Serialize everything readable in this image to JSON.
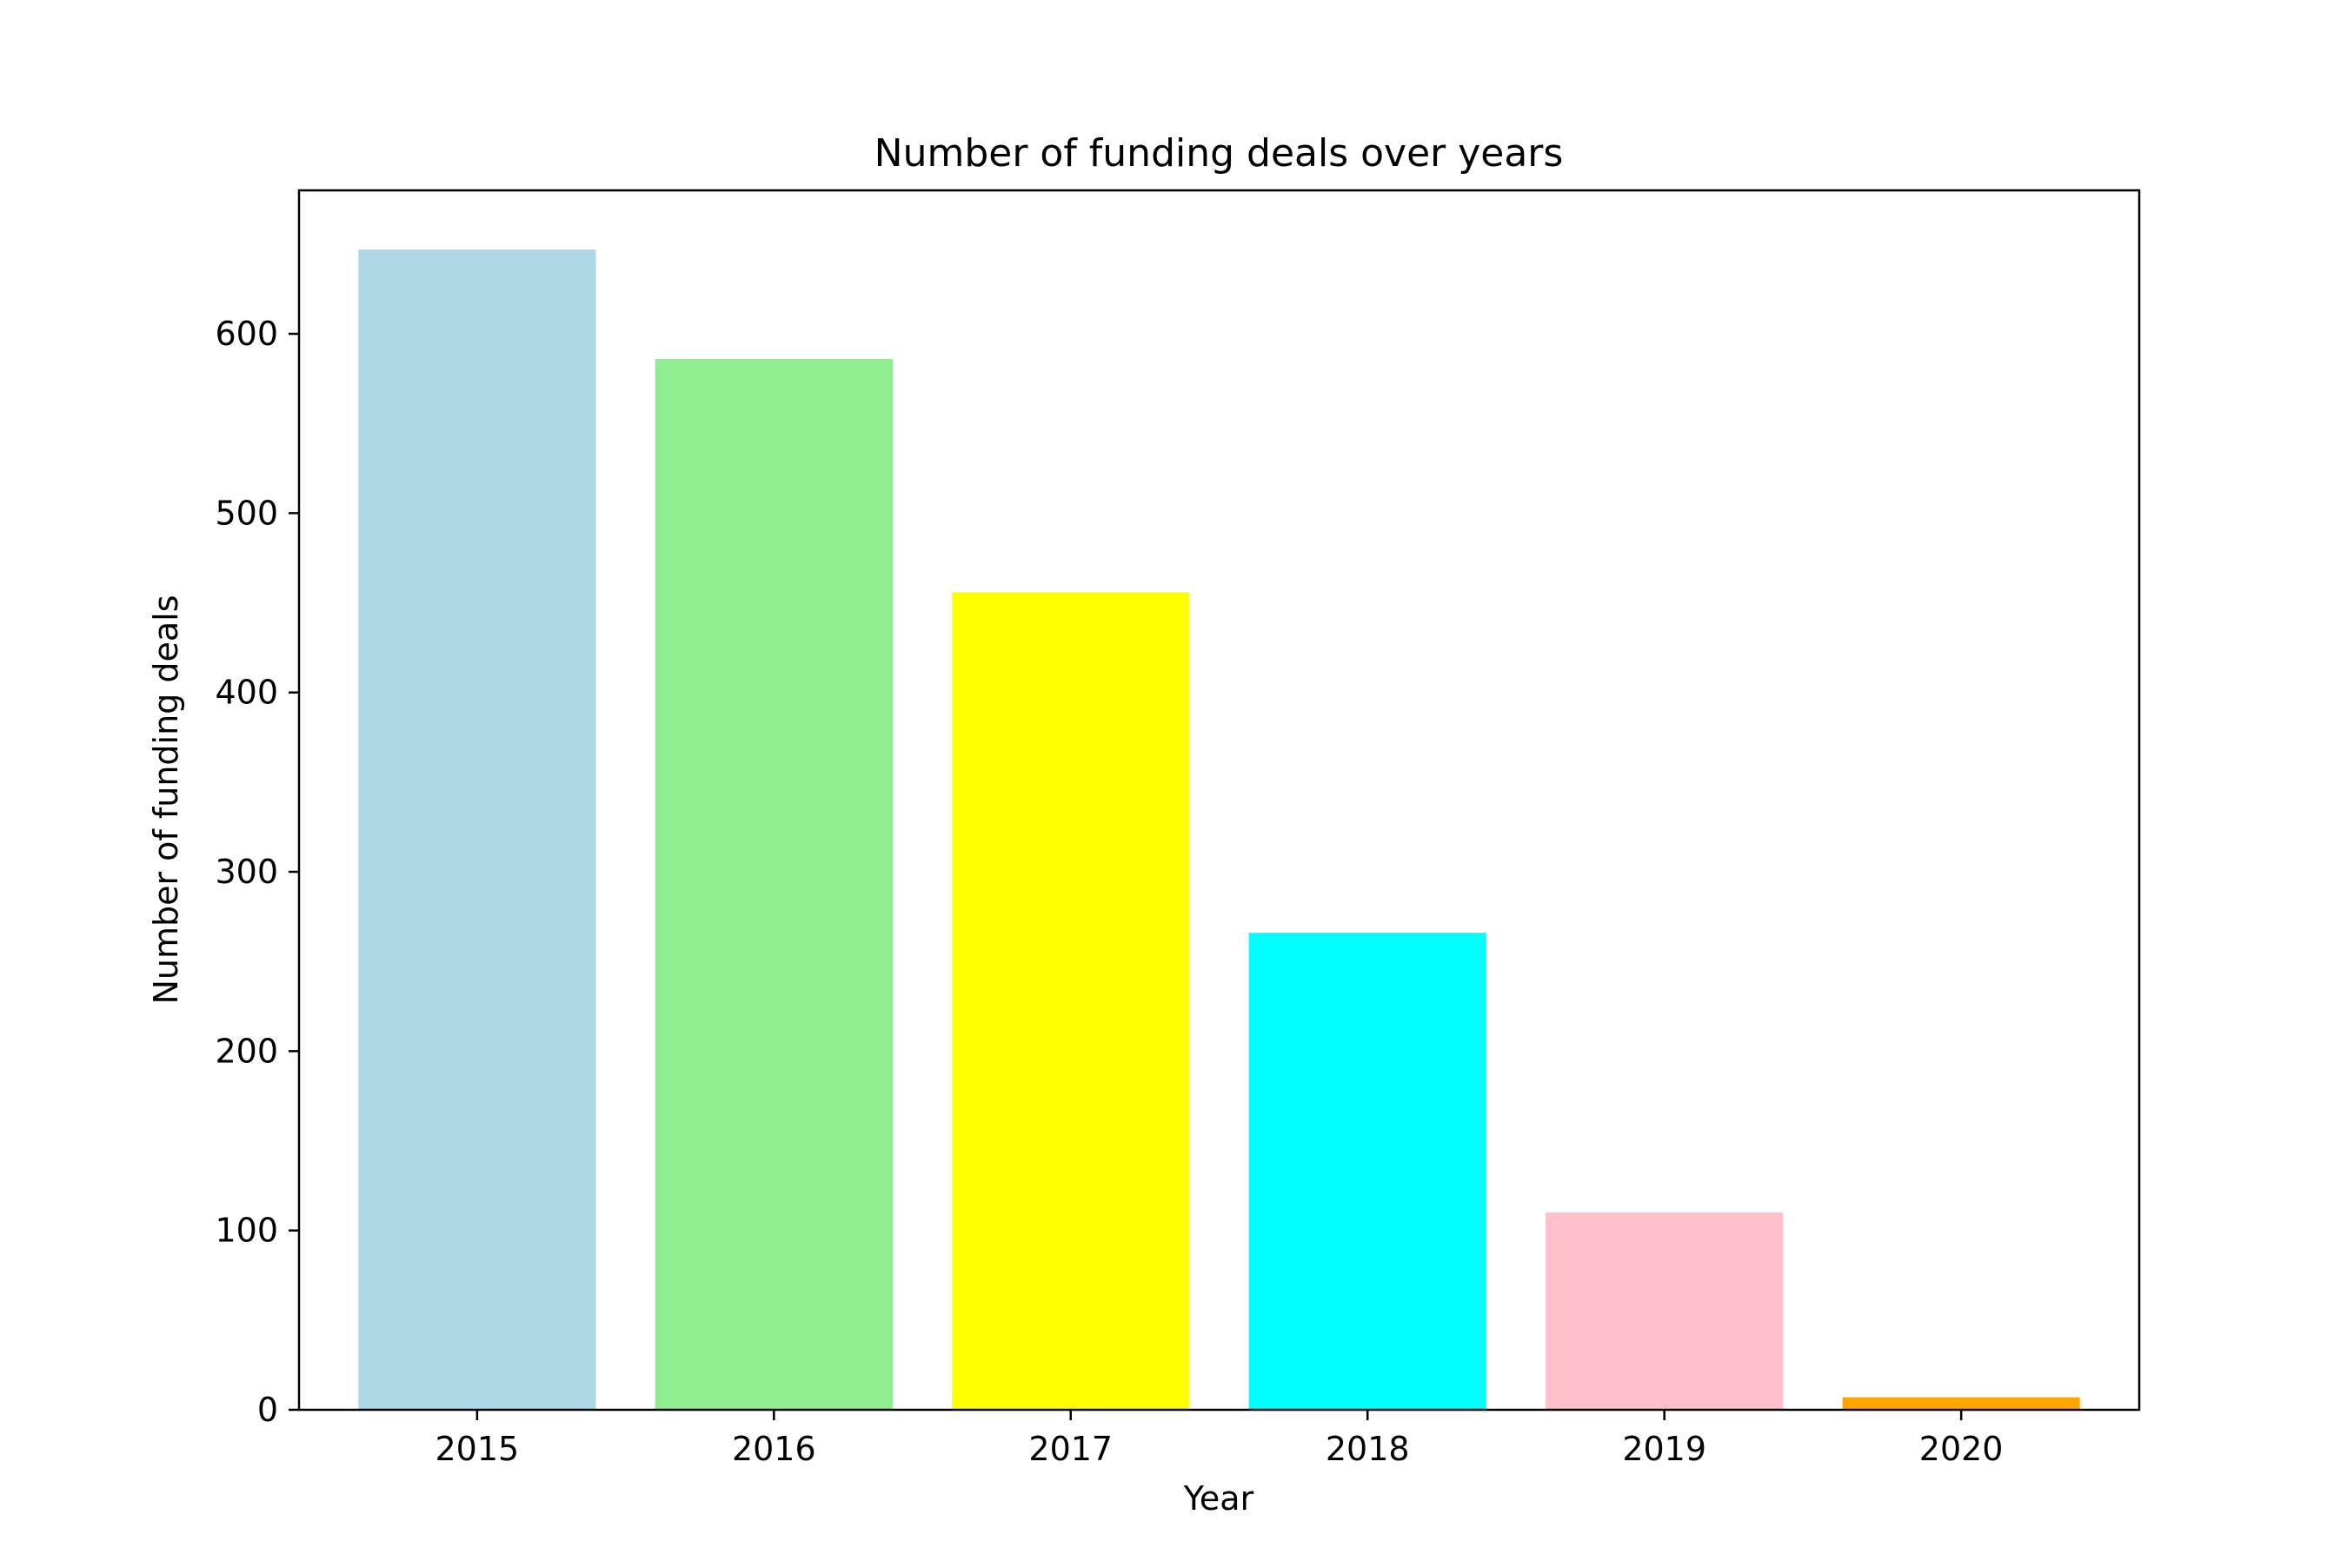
{
  "chart_data": {
    "type": "bar",
    "title": "Number of funding deals over years",
    "xlabel": "Year",
    "ylabel": "Number of funding deals",
    "categories": [
      "2015",
      "2016",
      "2017",
      "2018",
      "2019",
      "2020"
    ],
    "values": [
      647,
      586,
      456,
      266,
      110,
      7
    ],
    "colors": [
      "#add8e6",
      "#90ee90",
      "#ffff00",
      "#00ffff",
      "#ffc0cb",
      "#ffa500"
    ],
    "ylim": [
      0,
      680
    ],
    "yticks": [
      0,
      100,
      200,
      300,
      400,
      500,
      600
    ],
    "ytick_labels": [
      "0",
      "100",
      "200",
      "300",
      "400",
      "500",
      "600"
    ],
    "grid": false,
    "legend": "none"
  }
}
